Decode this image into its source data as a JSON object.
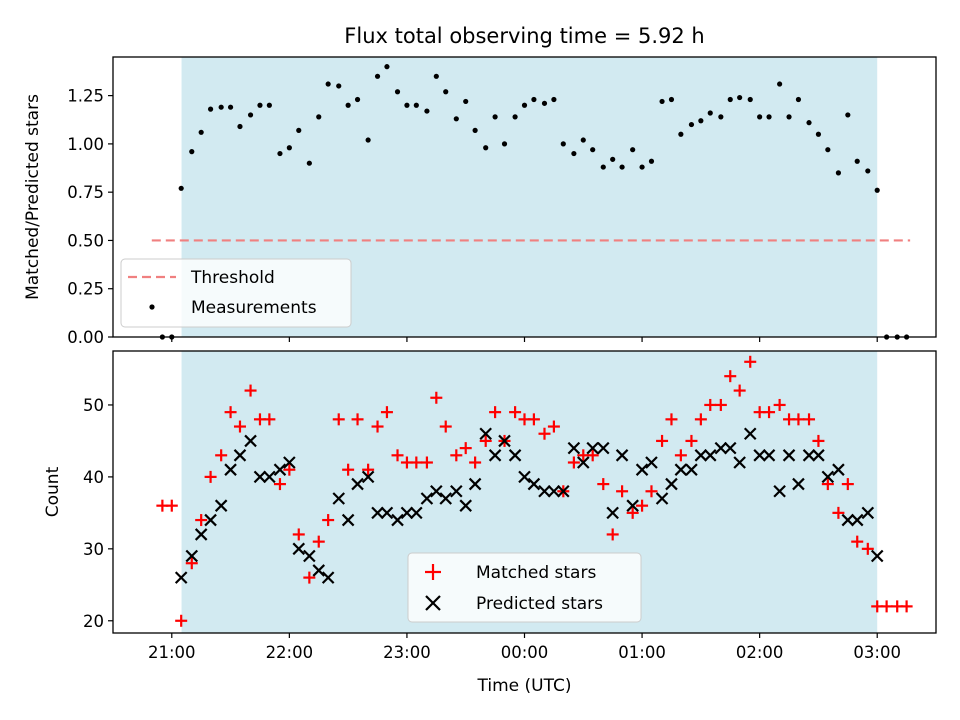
{
  "chart_data": [
    {
      "type": "scatter",
      "title": "Flux total observing time = 5.92 h",
      "ylabel": "Matched/Predicted stars",
      "xlim": [
        20.5,
        27.5
      ],
      "ylim": [
        0,
        1.45
      ],
      "yticks": [
        0.0,
        0.25,
        0.5,
        0.75,
        1.0,
        1.25
      ],
      "ytick_labels": [
        "0.00",
        "0.25",
        "0.50",
        "0.75",
        "1.00",
        "1.25"
      ],
      "shaded_span": [
        21.083,
        27.0
      ],
      "shade_color": "#add8e6",
      "threshold": {
        "name": "Threshold",
        "y": 0.5,
        "x": [
          20.83,
          27.28
        ],
        "color": "#f08080",
        "style": "dashed"
      },
      "legend_position": "lower left",
      "series": [
        {
          "name": "Measurements",
          "color": "#000000",
          "x": [
            20.92,
            21.0,
            21.08,
            21.17,
            21.25,
            21.33,
            21.42,
            21.5,
            21.58,
            21.67,
            21.75,
            21.83,
            21.92,
            22.0,
            22.08,
            22.17,
            22.25,
            22.33,
            22.42,
            22.5,
            22.58,
            22.67,
            22.75,
            22.83,
            22.92,
            23.0,
            23.08,
            23.17,
            23.25,
            23.33,
            23.42,
            23.5,
            23.58,
            23.67,
            23.75,
            23.83,
            23.92,
            24.0,
            24.08,
            24.17,
            24.25,
            24.33,
            24.42,
            24.5,
            24.58,
            24.67,
            24.75,
            24.83,
            24.92,
            25.0,
            25.08,
            25.17,
            25.25,
            25.33,
            25.42,
            25.5,
            25.58,
            25.67,
            25.75,
            25.83,
            25.92,
            26.0,
            26.08,
            26.17,
            26.25,
            26.33,
            26.42,
            26.5,
            26.58,
            26.67,
            26.75,
            26.83,
            26.92,
            27.0,
            27.08,
            27.17,
            27.25
          ],
          "y": [
            0.0,
            0.0,
            0.77,
            0.96,
            1.06,
            1.18,
            1.19,
            1.19,
            1.09,
            1.15,
            1.2,
            1.2,
            0.95,
            0.98,
            1.07,
            0.9,
            1.14,
            1.31,
            1.3,
            1.2,
            1.23,
            1.02,
            1.35,
            1.4,
            1.27,
            1.2,
            1.2,
            1.17,
            1.35,
            1.27,
            1.13,
            1.22,
            1.07,
            0.98,
            1.14,
            1.0,
            1.14,
            1.2,
            1.23,
            1.21,
            1.23,
            1.0,
            0.95,
            1.02,
            0.97,
            0.88,
            0.92,
            0.88,
            0.97,
            0.88,
            0.91,
            1.22,
            1.23,
            1.05,
            1.1,
            1.12,
            1.16,
            1.14,
            1.23,
            1.24,
            1.23,
            1.14,
            1.14,
            1.31,
            1.14,
            1.23,
            1.11,
            1.05,
            0.97,
            0.85,
            1.15,
            0.91,
            0.86,
            0.76,
            0.0,
            0.0,
            0.0
          ]
        }
      ]
    },
    {
      "type": "scatter",
      "xlabel": "Time (UTC)",
      "ylabel": "Count",
      "xlim": [
        20.5,
        27.5
      ],
      "ylim": [
        18.3,
        57.5
      ],
      "xticks": [
        21,
        22,
        23,
        24,
        25,
        26,
        27
      ],
      "xtick_labels": [
        "21:00",
        "22:00",
        "23:00",
        "00:00",
        "01:00",
        "02:00",
        "03:00"
      ],
      "yticks": [
        20,
        30,
        40,
        50
      ],
      "ytick_labels": [
        "20",
        "30",
        "40",
        "50"
      ],
      "shaded_span": [
        21.083,
        27.0
      ],
      "shade_color": "#add8e6",
      "legend_position": "lower center",
      "series": [
        {
          "name": "Matched stars",
          "marker": "plus",
          "color": "#ff0000",
          "x": [
            20.92,
            21.0,
            21.08,
            21.17,
            21.25,
            21.33,
            21.42,
            21.5,
            21.58,
            21.67,
            21.75,
            21.83,
            21.92,
            22.0,
            22.08,
            22.17,
            22.25,
            22.33,
            22.42,
            22.5,
            22.58,
            22.67,
            22.75,
            22.83,
            22.92,
            23.0,
            23.08,
            23.17,
            23.25,
            23.33,
            23.42,
            23.5,
            23.58,
            23.67,
            23.75,
            23.83,
            23.92,
            24.0,
            24.08,
            24.17,
            24.25,
            24.33,
            24.42,
            24.5,
            24.58,
            24.67,
            24.75,
            24.83,
            24.92,
            25.0,
            25.08,
            25.17,
            25.25,
            25.33,
            25.42,
            25.5,
            25.58,
            25.67,
            25.75,
            25.83,
            25.92,
            26.0,
            26.08,
            26.17,
            26.25,
            26.33,
            26.42,
            26.5,
            26.58,
            26.67,
            26.75,
            26.83,
            26.92,
            27.0,
            27.08,
            27.17,
            27.25
          ],
          "y": [
            36,
            36,
            20,
            28,
            34,
            40,
            43,
            49,
            47,
            52,
            48,
            48,
            39,
            41,
            32,
            26,
            31,
            34,
            48,
            41,
            48,
            41,
            47,
            49,
            43,
            42,
            42,
            42,
            51,
            47,
            43,
            44,
            42,
            45,
            49,
            45,
            49,
            48,
            48,
            46,
            47,
            38,
            42,
            43,
            43,
            39,
            32,
            38,
            35,
            36,
            38,
            45,
            48,
            43,
            45,
            48,
            50,
            50,
            54,
            52,
            56,
            49,
            49,
            50,
            48,
            48,
            48,
            45,
            39,
            35,
            39,
            31,
            30,
            22,
            22,
            22,
            22
          ]
        },
        {
          "name": "Predicted stars",
          "marker": "x",
          "color": "#000000",
          "x": [
            21.08,
            21.17,
            21.25,
            21.33,
            21.42,
            21.5,
            21.58,
            21.67,
            21.75,
            21.83,
            21.92,
            22.0,
            22.08,
            22.17,
            22.25,
            22.33,
            22.42,
            22.5,
            22.58,
            22.67,
            22.75,
            22.83,
            22.92,
            23.0,
            23.08,
            23.17,
            23.25,
            23.33,
            23.42,
            23.5,
            23.58,
            23.67,
            23.75,
            23.83,
            23.92,
            24.0,
            24.08,
            24.17,
            24.25,
            24.33,
            24.42,
            24.5,
            24.58,
            24.67,
            24.75,
            24.83,
            24.92,
            25.0,
            25.08,
            25.17,
            25.25,
            25.33,
            25.42,
            25.5,
            25.58,
            25.67,
            25.75,
            25.83,
            25.92,
            26.0,
            26.08,
            26.17,
            26.25,
            26.33,
            26.42,
            26.5,
            26.58,
            26.67,
            26.75,
            26.83,
            26.92,
            27.0
          ],
          "y": [
            26,
            29,
            32,
            34,
            36,
            41,
            43,
            45,
            40,
            40,
            41,
            42,
            30,
            29,
            27,
            26,
            37,
            34,
            39,
            40,
            35,
            35,
            34,
            35,
            35,
            37,
            38,
            37,
            38,
            36,
            39,
            46,
            43,
            45,
            43,
            40,
            39,
            38,
            38,
            38,
            44,
            42,
            44,
            44,
            35,
            43,
            36,
            41,
            42,
            37,
            39,
            41,
            41,
            43,
            43,
            44,
            44,
            42,
            46,
            43,
            43,
            38,
            43,
            39,
            43,
            43,
            40,
            41,
            34,
            34,
            35,
            29
          ]
        }
      ]
    }
  ]
}
